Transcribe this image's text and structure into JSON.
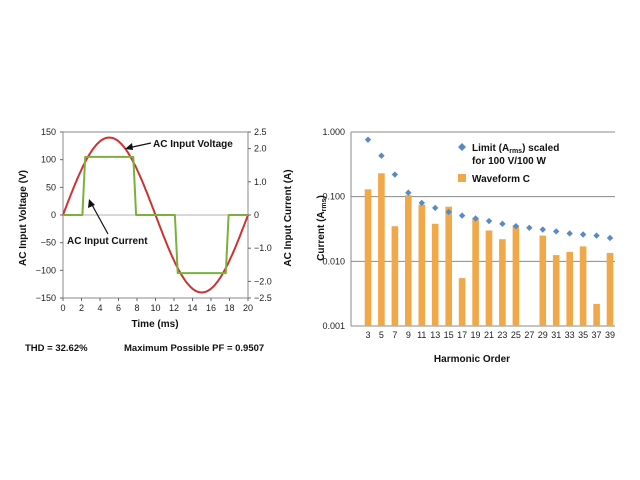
{
  "chart_data": [
    {
      "type": "line",
      "xlabel": "Time (ms)",
      "ylabel_left": "AC Input Voltage (V)",
      "ylabel_right": "AC Input Current (A)",
      "xlim": [
        0,
        20
      ],
      "ylim_left": [
        -150,
        150
      ],
      "ylim_right": [
        -2.5,
        2.5
      ],
      "xticks": [
        "0",
        "2",
        "4",
        "6",
        "8",
        "10",
        "12",
        "14",
        "16",
        "18",
        "20"
      ],
      "yticks_left": [
        "150",
        "100",
        "50",
        "0",
        "−50",
        "−100",
        "−150"
      ],
      "yticks_right": [
        "2.5",
        "2.0",
        "1.0",
        "0",
        "−1.0",
        "−2.0",
        "−2.5"
      ],
      "series": [
        {
          "name": "AC Input Voltage",
          "axis": "left",
          "color": "#cc3333",
          "x": [
            0,
            1,
            2,
            3,
            4,
            5,
            6,
            7,
            8,
            9,
            10,
            11,
            12,
            13,
            14,
            15,
            16,
            17,
            18,
            19,
            20
          ],
          "y": [
            0,
            43.3,
            82.3,
            113.3,
            133.1,
            140,
            133.1,
            113.3,
            82.3,
            43.3,
            0,
            -43.3,
            -82.3,
            -113.3,
            -133.1,
            -140,
            -133.1,
            -113.3,
            -82.3,
            -43.3,
            0
          ]
        },
        {
          "name": "AC Input Current",
          "axis": "right",
          "color": "#7ab03c",
          "x": [
            0,
            2.1,
            2.4,
            7.6,
            7.9,
            12.1,
            12.4,
            17.6,
            17.9,
            20
          ],
          "y": [
            0,
            0,
            1.75,
            1.75,
            0,
            0,
            -1.75,
            -1.75,
            0,
            0
          ]
        }
      ],
      "annotations": [
        "AC Input Voltage",
        "AC Input Current"
      ],
      "footer": {
        "thd": "THD = 32.62%",
        "pf": "Maximum Possible PF = 0.9507"
      }
    },
    {
      "type": "bar",
      "xlabel": "Harmonic Order",
      "ylabel": "Current (A",
      "ylabel_sub": "rms",
      "ylabel_end": ")",
      "yscale": "log",
      "ylim": [
        0.001,
        1
      ],
      "yticks": [
        "1.000",
        "0.100",
        "0.010",
        "0.001"
      ],
      "categories": [
        "3",
        "5",
        "7",
        "9",
        "11",
        "13",
        "15",
        "17",
        "19",
        "21",
        "23",
        "25",
        "27",
        "29",
        "31",
        "33",
        "35",
        "37",
        "39"
      ],
      "series": [
        {
          "name": "Waveform C",
          "kind": "bar",
          "color": "#f0a848",
          "values": [
            0.13,
            0.23,
            0.035,
            0.105,
            0.075,
            0.038,
            0.07,
            0.0055,
            0.047,
            0.03,
            0.022,
            0.036,
            null,
            0.025,
            0.0125,
            0.014,
            0.017,
            0.0022,
            0.0135
          ]
        },
        {
          "name_prefix": "Limit (A",
          "name_sub": "rms",
          "name_suffix": ") scaled",
          "name_line2": "for 100 V/100 W",
          "kind": "marker",
          "color": "#5a8ac6",
          "values": [
            0.76,
            0.43,
            0.22,
            0.115,
            0.08,
            0.067,
            0.058,
            0.051,
            0.046,
            0.042,
            0.038,
            0.035,
            0.033,
            0.031,
            0.029,
            0.027,
            0.026,
            0.025,
            0.023
          ]
        }
      ],
      "legend_position": "top-right"
    }
  ]
}
